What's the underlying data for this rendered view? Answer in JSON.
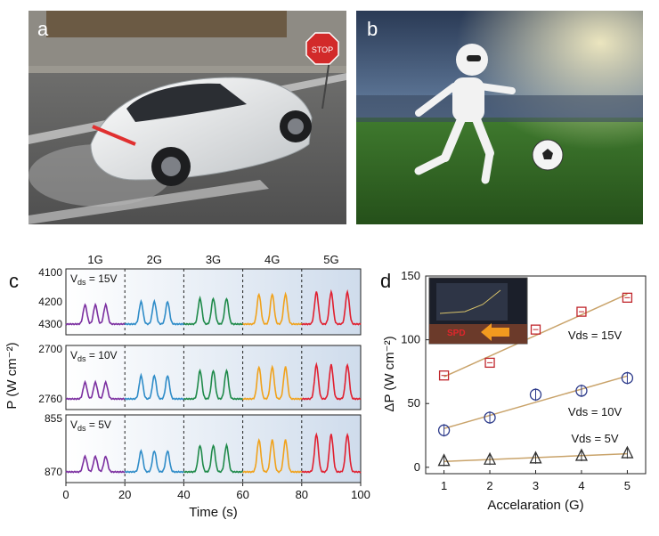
{
  "panel_a": {
    "label": "a",
    "stop_sign": "STOP"
  },
  "panel_b": {
    "label": "b"
  },
  "panel_c": {
    "label": "c",
    "chart_data": {
      "type": "line",
      "xlabel": "Time (s)",
      "ylabel": "P (W cm⁻²)",
      "xlim": [
        0,
        100
      ],
      "xticks": [
        "0",
        "20",
        "40",
        "60",
        "80",
        "100"
      ],
      "segment_labels": [
        "1G",
        "2G",
        "3G",
        "4G",
        "5G"
      ],
      "segment_boundaries": [
        20,
        40,
        60,
        80
      ],
      "segment_colors": [
        "#7b2fa0",
        "#2f8cc8",
        "#1f8a4a",
        "#f0a21c",
        "#e02030"
      ],
      "pulse_times": [
        [
          6.5,
          10.0,
          13.5
        ],
        [
          25.5,
          30.0,
          34.5
        ],
        [
          45.5,
          50.0,
          54.5
        ],
        [
          65.5,
          70.0,
          74.5
        ],
        [
          85.0,
          90.0,
          95.5
        ]
      ],
      "subpanels": [
        {
          "vds": "V",
          "vds_sub": "ds",
          "vds_rest": " = 15V",
          "ytick_top": "4100",
          "ytick_mid": "4200",
          "ytick_bot": "4300",
          "rel_amplitudes": [
            0.36,
            0.42,
            0.48,
            0.56,
            0.6
          ]
        },
        {
          "vds": "V",
          "vds_sub": "ds",
          "vds_rest": " = 10V",
          "ytick_top": "2700",
          "ytick_mid": "",
          "ytick_bot": "2760",
          "rel_amplitudes": [
            0.32,
            0.45,
            0.55,
            0.62,
            0.66
          ]
        },
        {
          "vds": "V",
          "vds_sub": "ds",
          "vds_rest": " = 5V",
          "ytick_top": "855",
          "ytick_mid": "",
          "ytick_bot": "870",
          "rel_amplitudes": [
            0.28,
            0.38,
            0.48,
            0.58,
            0.68
          ]
        }
      ]
    }
  },
  "panel_d": {
    "label": "d",
    "inset_label": "SPD",
    "chart_data": {
      "type": "scatter",
      "xlabel": "Accelaration (G)",
      "ylabel": "ΔP (W cm⁻²)",
      "xlim": [
        0.6,
        5.4
      ],
      "ylim": [
        -5,
        150
      ],
      "xticks": [
        1,
        2,
        3,
        4,
        5
      ],
      "yticks": [
        0,
        50,
        100,
        150
      ],
      "x": [
        1,
        2,
        3,
        4,
        5
      ],
      "series": [
        {
          "name": "Vds = 15V",
          "marker": "square",
          "color": "#c0262c",
          "values": [
            72,
            82,
            108,
            122,
            133
          ]
        },
        {
          "name": "Vds = 10V",
          "marker": "circle",
          "color": "#2c3a8a",
          "values": [
            29,
            39,
            57,
            60,
            70
          ]
        },
        {
          "name": "Vds = 5V",
          "marker": "triangle",
          "color": "#333333",
          "values": [
            5,
            6,
            7,
            9,
            11
          ]
        }
      ],
      "fit_color": "#c9a36a"
    }
  }
}
